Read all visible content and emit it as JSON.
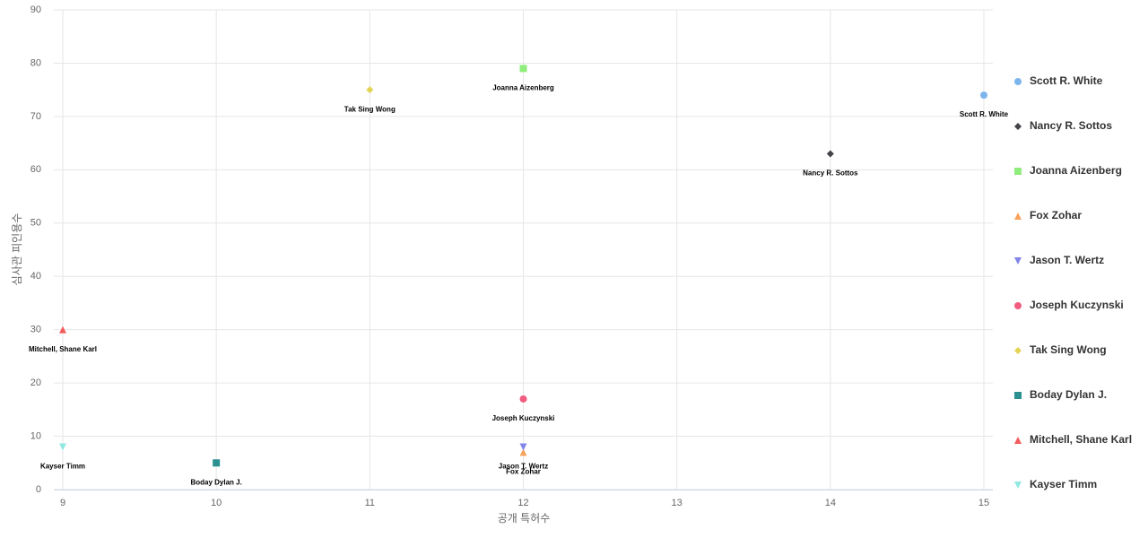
{
  "chart_data": {
    "type": "scatter",
    "x_label": "공개 특허수",
    "y_label": "심사관 피인용수",
    "xlim": [
      9,
      15
    ],
    "xticks": [
      9,
      10,
      11,
      12,
      13,
      14,
      15
    ],
    "ylim": [
      0,
      90
    ],
    "yticks": [
      0,
      10,
      20,
      30,
      40,
      50,
      60,
      70,
      80,
      90
    ],
    "grid": true,
    "legend": "right",
    "series": [
      {
        "name": "Scott R. White",
        "color": "#7cb5ec",
        "marker": "circle",
        "x": [
          15
        ],
        "y": [
          74
        ]
      },
      {
        "name": "Nancy R. Sottos",
        "color": "#434348",
        "marker": "diamond",
        "x": [
          14
        ],
        "y": [
          63
        ]
      },
      {
        "name": "Joanna Aizenberg",
        "color": "#90ed7d",
        "marker": "square",
        "x": [
          12
        ],
        "y": [
          79
        ]
      },
      {
        "name": "Fox Zohar",
        "color": "#f7a35c",
        "marker": "triangle",
        "x": [
          12
        ],
        "y": [
          7
        ]
      },
      {
        "name": "Jason T. Wertz",
        "color": "#8085e9",
        "marker": "triangle-down",
        "x": [
          12
        ],
        "y": [
          8
        ]
      },
      {
        "name": "Joseph Kuczynski",
        "color": "#f15c80",
        "marker": "circle",
        "x": [
          12
        ],
        "y": [
          17
        ]
      },
      {
        "name": "Tak Sing Wong",
        "color": "#e4d354",
        "marker": "diamond",
        "x": [
          11
        ],
        "y": [
          75
        ]
      },
      {
        "name": "Boday Dylan J.",
        "color": "#2b908f",
        "marker": "square",
        "x": [
          10
        ],
        "y": [
          5
        ]
      },
      {
        "name": "Mitchell, Shane Karl",
        "color": "#f45b5b",
        "marker": "triangle",
        "x": [
          9
        ],
        "y": [
          30
        ]
      },
      {
        "name": "Kayser Timm",
        "color": "#91e8e1",
        "marker": "triangle-down",
        "x": [
          9
        ],
        "y": [
          8
        ]
      }
    ]
  }
}
